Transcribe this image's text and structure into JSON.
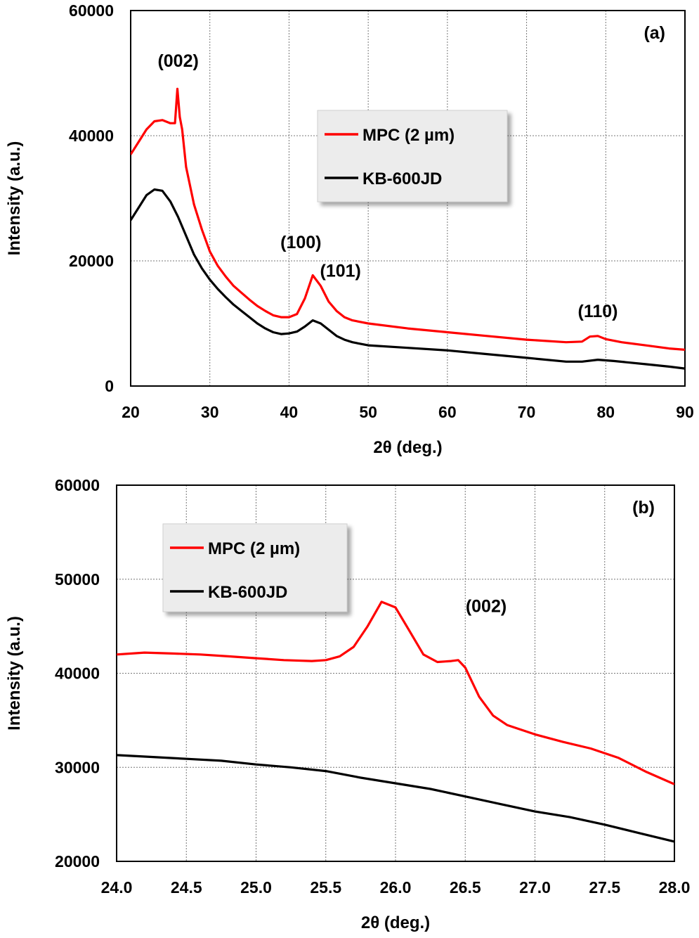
{
  "chart_data": [
    {
      "type": "line",
      "panel_label": "(a)",
      "xlabel": "2θ (deg.)",
      "ylabel": "Intensity (a.u.)",
      "xlim": [
        20,
        90
      ],
      "ylim": [
        0,
        60000
      ],
      "x_ticks": [
        20,
        30,
        40,
        50,
        60,
        70,
        80,
        90
      ],
      "y_ticks": [
        0,
        20000,
        40000,
        60000
      ],
      "x_tick_labels": [
        "20",
        "30",
        "40",
        "50",
        "60",
        "70",
        "80",
        "90"
      ],
      "y_tick_labels": [
        "0",
        "20000",
        "40000",
        "60000"
      ],
      "grid": true,
      "legend_position": "top-center",
      "series": [
        {
          "name": "MPC (2 µm)",
          "color": "#ff0000",
          "points": [
            [
              20,
              37000
            ],
            [
              21,
              39000
            ],
            [
              22,
              41000
            ],
            [
              23,
              42300
            ],
            [
              24,
              42500
            ],
            [
              25,
              42000
            ],
            [
              25.6,
              42000
            ],
            [
              25.9,
              47500
            ],
            [
              26.2,
              43000
            ],
            [
              26.5,
              41000
            ],
            [
              27,
              35000
            ],
            [
              28,
              29000
            ],
            [
              29,
              25000
            ],
            [
              30,
              21500
            ],
            [
              31,
              19200
            ],
            [
              32,
              17500
            ],
            [
              33,
              16000
            ],
            [
              34,
              14900
            ],
            [
              35,
              13800
            ],
            [
              36,
              12800
            ],
            [
              37,
              12000
            ],
            [
              38,
              11300
            ],
            [
              39,
              11000
            ],
            [
              40,
              11000
            ],
            [
              41,
              11500
            ],
            [
              42,
              14000
            ],
            [
              43,
              17700
            ],
            [
              44,
              16000
            ],
            [
              45,
              13500
            ],
            [
              46,
              12000
            ],
            [
              47,
              11000
            ],
            [
              48,
              10500
            ],
            [
              50,
              10000
            ],
            [
              55,
              9200
            ],
            [
              60,
              8600
            ],
            [
              65,
              8000
            ],
            [
              70,
              7400
            ],
            [
              75,
              7000
            ],
            [
              77,
              7100
            ],
            [
              78,
              7900
            ],
            [
              79,
              8000
            ],
            [
              80,
              7500
            ],
            [
              82,
              7000
            ],
            [
              85,
              6500
            ],
            [
              88,
              6000
            ],
            [
              90,
              5800
            ]
          ]
        },
        {
          "name": "KB-600JD",
          "color": "#000000",
          "points": [
            [
              20,
              26500
            ],
            [
              21,
              28500
            ],
            [
              22,
              30500
            ],
            [
              23,
              31400
            ],
            [
              24,
              31200
            ],
            [
              25,
              29500
            ],
            [
              26,
              27000
            ],
            [
              27,
              24000
            ],
            [
              28,
              21000
            ],
            [
              29,
              18800
            ],
            [
              30,
              17000
            ],
            [
              31,
              15500
            ],
            [
              32,
              14200
            ],
            [
              33,
              13000
            ],
            [
              34,
              12000
            ],
            [
              35,
              11000
            ],
            [
              36,
              10000
            ],
            [
              37,
              9200
            ],
            [
              38,
              8600
            ],
            [
              39,
              8300
            ],
            [
              40,
              8400
            ],
            [
              41,
              8700
            ],
            [
              42,
              9500
            ],
            [
              43,
              10500
            ],
            [
              44,
              10000
            ],
            [
              45,
              9000
            ],
            [
              46,
              8000
            ],
            [
              47,
              7400
            ],
            [
              48,
              7000
            ],
            [
              50,
              6500
            ],
            [
              55,
              6100
            ],
            [
              60,
              5700
            ],
            [
              65,
              5100
            ],
            [
              70,
              4500
            ],
            [
              75,
              3900
            ],
            [
              77,
              3900
            ],
            [
              79,
              4200
            ],
            [
              81,
              4000
            ],
            [
              85,
              3500
            ],
            [
              88,
              3100
            ],
            [
              90,
              2800
            ]
          ]
        }
      ],
      "annotations": [
        {
          "text": "(002)",
          "x": 26,
          "y": 51000
        },
        {
          "text": "(100)",
          "x": 41.5,
          "y": 22000
        },
        {
          "text": "(101)",
          "x": 46.5,
          "y": 17500
        },
        {
          "text": "(110)",
          "x": 79,
          "y": 11000
        }
      ]
    },
    {
      "type": "line",
      "panel_label": "(b)",
      "xlabel": "2θ (deg.)",
      "ylabel": "Intensity (a.u.)",
      "xlim": [
        24.0,
        28.0
      ],
      "ylim": [
        20000,
        60000
      ],
      "x_ticks": [
        24.0,
        24.5,
        25.0,
        25.5,
        26.0,
        26.5,
        27.0,
        27.5,
        28.0
      ],
      "y_ticks": [
        20000,
        30000,
        40000,
        50000,
        60000
      ],
      "x_tick_labels": [
        "24.0",
        "24.5",
        "25.0",
        "25.5",
        "26.0",
        "26.5",
        "27.0",
        "27.5",
        "28.0"
      ],
      "y_tick_labels": [
        "20000",
        "30000",
        "40000",
        "50000",
        "60000"
      ],
      "grid": true,
      "legend_position": "top-left",
      "series": [
        {
          "name": "MPC (2 µm)",
          "color": "#ff0000",
          "points": [
            [
              24.0,
              42000
            ],
            [
              24.2,
              42200
            ],
            [
              24.4,
              42100
            ],
            [
              24.6,
              42000
            ],
            [
              24.8,
              41800
            ],
            [
              25.0,
              41600
            ],
            [
              25.2,
              41400
            ],
            [
              25.4,
              41300
            ],
            [
              25.5,
              41400
            ],
            [
              25.6,
              41800
            ],
            [
              25.7,
              42800
            ],
            [
              25.8,
              45000
            ],
            [
              25.9,
              47600
            ],
            [
              26.0,
              47000
            ],
            [
              26.1,
              44500
            ],
            [
              26.2,
              42000
            ],
            [
              26.3,
              41200
            ],
            [
              26.4,
              41300
            ],
            [
              26.45,
              41400
            ],
            [
              26.5,
              40600
            ],
            [
              26.6,
              37500
            ],
            [
              26.7,
              35500
            ],
            [
              26.8,
              34500
            ],
            [
              27.0,
              33500
            ],
            [
              27.2,
              32700
            ],
            [
              27.4,
              32000
            ],
            [
              27.6,
              31000
            ],
            [
              27.8,
              29500
            ],
            [
              28.0,
              28200
            ]
          ]
        },
        {
          "name": "KB-600JD",
          "color": "#000000",
          "points": [
            [
              24.0,
              31300
            ],
            [
              24.25,
              31100
            ],
            [
              24.5,
              30900
            ],
            [
              24.75,
              30700
            ],
            [
              25.0,
              30300
            ],
            [
              25.25,
              30000
            ],
            [
              25.5,
              29600
            ],
            [
              25.75,
              28900
            ],
            [
              26.0,
              28300
            ],
            [
              26.25,
              27700
            ],
            [
              26.5,
              26900
            ],
            [
              26.75,
              26100
            ],
            [
              27.0,
              25300
            ],
            [
              27.25,
              24700
            ],
            [
              27.5,
              23900
            ],
            [
              27.75,
              23000
            ],
            [
              28.0,
              22100
            ]
          ]
        }
      ],
      "annotations": [
        {
          "text": "(002)",
          "x": 26.65,
          "y": 46500
        }
      ]
    }
  ]
}
